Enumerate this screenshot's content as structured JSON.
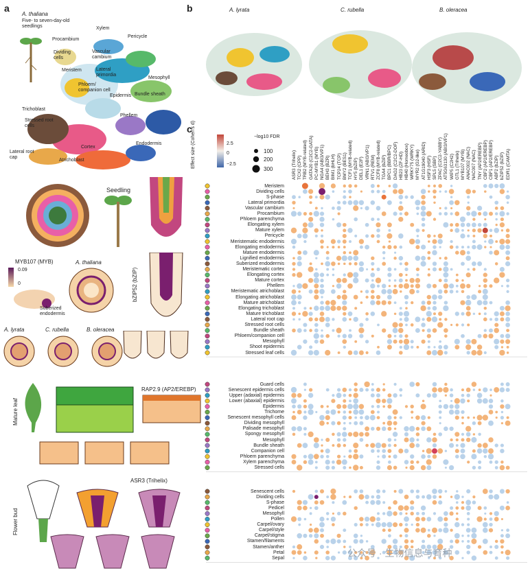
{
  "panels": {
    "a": "a",
    "b": "b",
    "c": "c"
  },
  "panel_a": {
    "species": "A. thaliana",
    "seedling_caption": "Five- to seven-day-old seedlings",
    "umap_labels": [
      "Xylem",
      "Pericycle",
      "Procambium",
      "Vascular cambium",
      "Dividing cells",
      "Meristem",
      "Lateral primordia",
      "Mesophyll",
      "Phloem/ companion cell",
      "Epidermis",
      "Bundle sheath",
      "Phellem",
      "Trichoblast",
      "Stressed root cells",
      "Endodermis",
      "Cortex",
      "Lateral root cap",
      "Atrichoblast"
    ],
    "seedling_label": "Seedling",
    "myb_title": "MYB107 (MYB)",
    "myb_scale": [
      "0.09",
      "0"
    ],
    "myb_species": "A. thaliana",
    "suberized_label": "Suberized endodermis",
    "bzip_label": "bZIP52 (bZIP)",
    "species_row": [
      "A. lyrata",
      "C. rubella",
      "B. oleracea"
    ],
    "mature_leaf_label": "Mature leaf",
    "rap_title": "RAP2.9 (AP2/EREBP)",
    "flower_label": "Flower bud",
    "asr_title": "ASR3 (Trihelix)"
  },
  "panel_b": {
    "species": [
      "A. lyrata",
      "C. rubella",
      "B. oleracea"
    ]
  },
  "panel_c": {
    "legend": {
      "effect_title": "Effect size (Cohen's d)",
      "effect_ticks": [
        "2.5",
        "0",
        "−2.5"
      ],
      "fdr_title": "−log10 FDR",
      "fdr_values": [
        "100",
        "200",
        "300"
      ]
    },
    "columns": [
      "ASR3 (Trihelix)",
      "TCX2 (CPP)",
      "TRB2 (MYB-related)",
      "GATA20 (C2C2-GATA)",
      "PC-MYB1 (MYB)",
      "NGA4 (ABI3/VP1)",
      "BEH3 (BZR)",
      "BIM1 (bHLH)",
      "TCP24 (TCP)",
      "BMY2 (BES1)",
      "TCF1 (MYB-related)",
      "HY5 (bZIP)",
      "DEL1 (E2F)",
      "VRN1 (ABI3/VP1)",
      "RTV1 (REM)",
      "ZCF8 (MYB-related)",
      "TGA4 (bZIP)",
      "BPC1 (BBR/BPC)",
      "DAG2 (C2C2-DOF)",
      "HB23 (ZF-HD)",
      "HB40 (Homeobox)",
      "WRKY75 (WRKY)",
      "MYR2 (G2-like)",
      "AT1G19040 (ARID)",
      "HSF3 (HSF)",
      "SPL5 (SBP)",
      "ZPAC (C2C2-YABBY)",
      "AT5G63130 (ABI3/VP1)",
      "WIP5 (C2H2)",
      "GTL1 (Trihelix)",
      "MYB107 (MYB)",
      "ANAC002 (NAC)",
      "NAC007 (NAC)",
      "TNY (AP2/EREBP)",
      "CBF2 (AP2/EREBP)",
      "CBF1 (AP2/EREBP)",
      "ABF2 (bZIP)",
      "bZIP52 (bZIP)",
      "EDR1 (CAMTA)"
    ],
    "groups": [
      {
        "name": "seedling",
        "rows": [
          "Meristem",
          "Dividing cells",
          "S-phase",
          "Lateral primordia",
          "Vascular cambium",
          "Procambium",
          "Phloem parenchyma",
          "Elongating xylem",
          "Mature xylem",
          "Pericycle",
          "Meristematic endodermis",
          "Elongating endodermis",
          "Mature endodermis",
          "Lignified endodermis",
          "Suberized endodermis",
          "Meristematic cortex",
          "Elongating cortex",
          "Mature cortex",
          "Phellem",
          "Meristematic atrichoblast",
          "Elongating atrichoblast",
          "Mature atrichoblast",
          "Elongating trichoblast",
          "Mature trichoblast",
          "Lateral root cap",
          "Stressed root cells",
          "Bundle sheath",
          "Phloem/companion cell",
          "Mesophyll",
          "Shoot epidermis",
          "Stressed leaf cells"
        ]
      },
      {
        "name": "leaf",
        "rows": [
          "Guard cells",
          "Senescent epidermis cells",
          "Upper (adaxial) epidermis",
          "Lower (abaxial) epidermis",
          "Epidermis",
          "Trichome",
          "Senescent mesophyll cells",
          "Dividing mesophyll",
          "Palisade mesophyll",
          "Spongy mesophyll",
          "Mesophyll",
          "Bundle sheath",
          "Companion cell",
          "Phloem parenchyma",
          "Xylem parenchyma",
          "Stressed cells"
        ]
      },
      {
        "name": "flower",
        "rows": [
          "Senescent cells",
          "Dividing cells",
          "S-phase",
          "Pedicel",
          "Mesophyll",
          "Pollen",
          "Carpel/ovary",
          "Carpel/style",
          "Carpel/stigma",
          "Stamen/filaments",
          "Stamen/anther",
          "Petal",
          "Sepal"
        ]
      }
    ]
  },
  "watermark": "公众号 · 生物信息与育种",
  "colors": {
    "pos": "#e8743b",
    "neg": "#9bbde0",
    "accent": "#7a1f6e"
  }
}
